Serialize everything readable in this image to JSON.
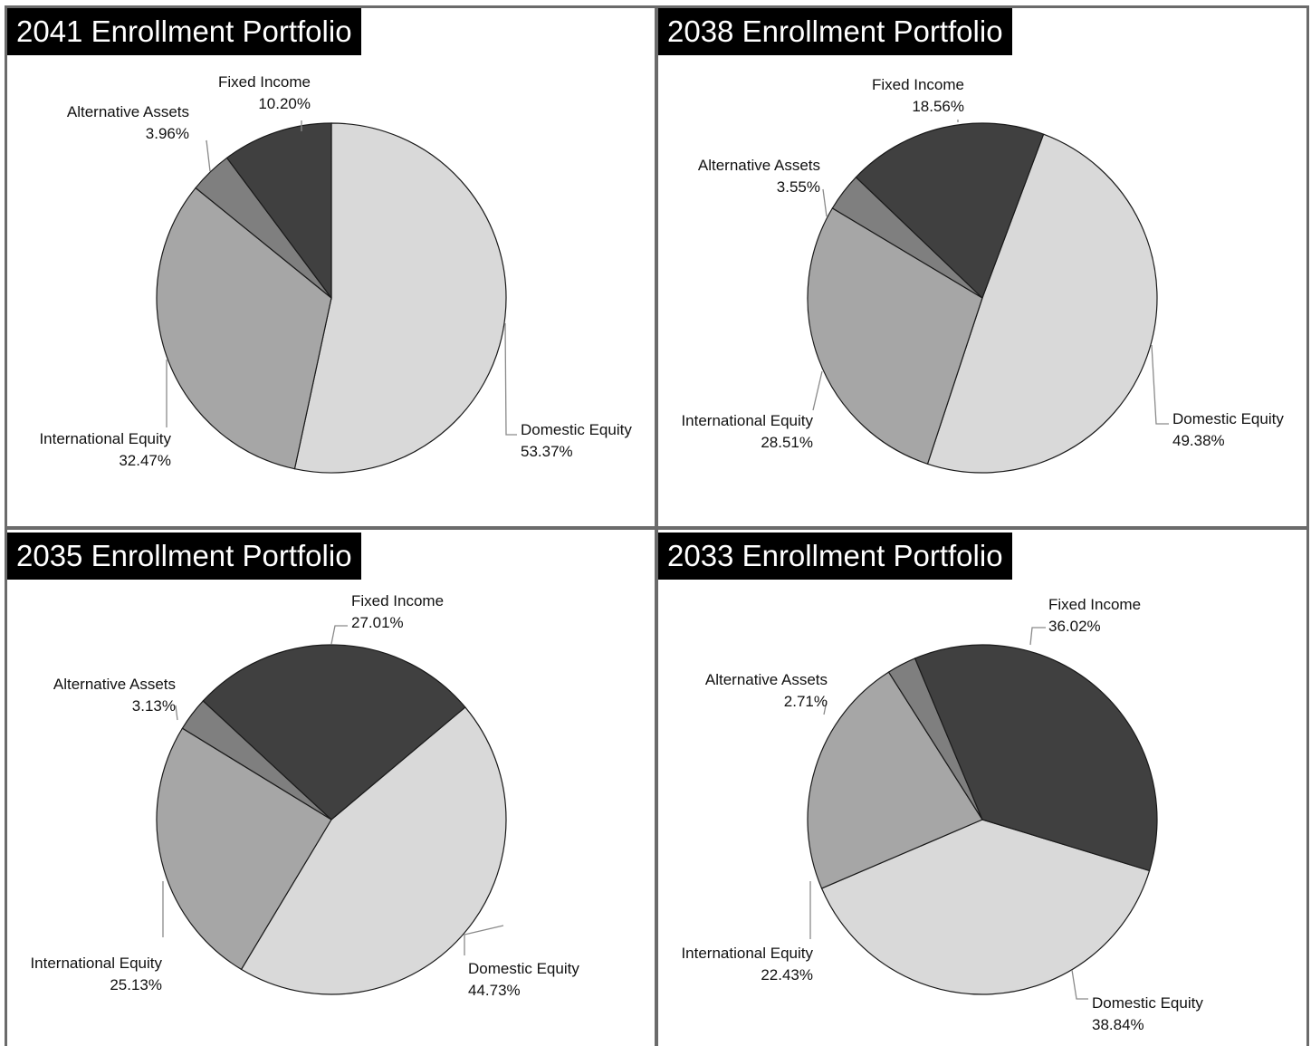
{
  "colors": {
    "Domestic Equity": "#d9d9d9",
    "International Equity": "#a6a6a6",
    "Alternative Assets": "#7f7f7f",
    "Fixed Income": "#404040",
    "title_bg": "#000000",
    "title_text": "#ffffff",
    "frame": "#6b6b6b"
  },
  "chart_data": [
    {
      "type": "pie",
      "title": "2041 Enrollment Portfolio",
      "labels": [
        "Domestic Equity",
        "International Equity",
        "Alternative Assets",
        "Fixed Income"
      ],
      "values": [
        53.37,
        32.47,
        3.96,
        10.2
      ],
      "value_labels": [
        "53.37%",
        "32.47%",
        "3.96%",
        "10.20%"
      ]
    },
    {
      "type": "pie",
      "title": "2038 Enrollment Portfolio",
      "labels": [
        "Domestic Equity",
        "International Equity",
        "Alternative Assets",
        "Fixed Income"
      ],
      "values": [
        49.38,
        28.51,
        3.55,
        18.56
      ],
      "value_labels": [
        "49.38%",
        "28.51%",
        "3.55%",
        "18.56%"
      ]
    },
    {
      "type": "pie",
      "title": "2035 Enrollment Portfolio",
      "labels": [
        "Domestic Equity",
        "International Equity",
        "Alternative Assets",
        "Fixed Income"
      ],
      "values": [
        44.73,
        25.13,
        3.13,
        27.01
      ],
      "value_labels": [
        "44.73%",
        "25.13%",
        "3.13%",
        "27.01%"
      ]
    },
    {
      "type": "pie",
      "title": "2033 Enrollment Portfolio",
      "labels": [
        "Domestic Equity",
        "International Equity",
        "Alternative Assets",
        "Fixed Income"
      ],
      "values": [
        38.84,
        22.43,
        2.71,
        36.02
      ],
      "value_labels": [
        "38.84%",
        "22.43%",
        "2.71%",
        "36.02%"
      ]
    }
  ]
}
